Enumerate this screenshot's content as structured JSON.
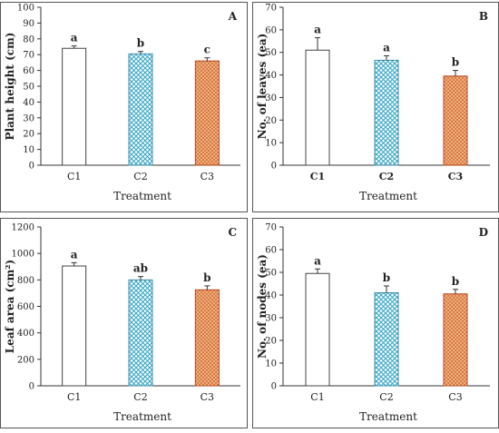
{
  "colors": {
    "frame": "#555555",
    "bar_fills": [
      "#ffffff",
      "hatch-blue",
      "hatch-orange"
    ],
    "blue_hatch": "#39a7c7",
    "orange_hatch": "#d9763a",
    "orange_border": "#b5441f"
  },
  "chart_data": [
    {
      "type": "bar",
      "panel": "A",
      "categories": [
        "C1",
        "C2",
        "C3"
      ],
      "values": [
        74,
        70.5,
        66
      ],
      "errors": [
        1.5,
        1.5,
        2
      ],
      "significance": [
        "a",
        "b",
        "c"
      ],
      "xlabel": "Treatment",
      "ylabel": "Plant height (cm)",
      "ylim": [
        0,
        100
      ],
      "yticks": [
        0,
        10,
        20,
        30,
        40,
        50,
        60,
        70,
        80,
        90,
        100
      ],
      "grid": false
    },
    {
      "type": "bar",
      "panel": "B",
      "categories": [
        "C1",
        "C2",
        "C3"
      ],
      "values": [
        51,
        46.5,
        39.5
      ],
      "errors": [
        5.5,
        2,
        2.5
      ],
      "significance": [
        "a",
        "a",
        "b"
      ],
      "xlabel": "Treatment",
      "ylabel": "No. of leaves (ea)",
      "ylim": [
        0,
        70
      ],
      "yticks": [
        0,
        10,
        20,
        30,
        40,
        50,
        60,
        70
      ],
      "grid": false
    },
    {
      "type": "bar",
      "panel": "C",
      "categories": [
        "C1",
        "C2",
        "C3"
      ],
      "values": [
        905,
        800,
        725
      ],
      "errors": [
        25,
        25,
        30
      ],
      "significance": [
        "a",
        "ab",
        "b"
      ],
      "xlabel": "Treatment",
      "ylabel": "Leaf area (cm²)",
      "ylim": [
        0,
        1200
      ],
      "yticks": [
        0,
        200,
        400,
        600,
        800,
        1000,
        1200
      ],
      "grid": false
    },
    {
      "type": "bar",
      "panel": "D",
      "categories": [
        "C1",
        "C2",
        "C3"
      ],
      "values": [
        49.5,
        41,
        40.5
      ],
      "errors": [
        2,
        3,
        2
      ],
      "significance": [
        "a",
        "b",
        "b"
      ],
      "xlabel": "Treatment",
      "ylabel": "No. of nodes (ea)",
      "ylim": [
        0,
        70
      ],
      "yticks": [
        0,
        10,
        20,
        30,
        40,
        50,
        60,
        70
      ],
      "grid": false
    }
  ]
}
